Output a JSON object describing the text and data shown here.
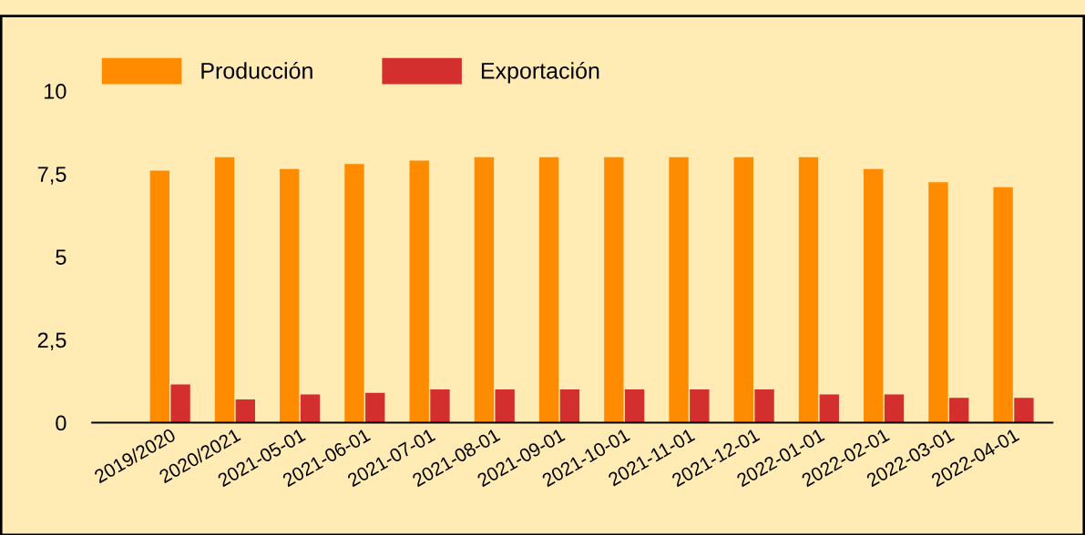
{
  "chart_data": {
    "type": "bar",
    "categories": [
      "2019/2020",
      "2020/2021",
      "2021-05-01",
      "2021-06-01",
      "2021-07-01",
      "2021-08-01",
      "2021-09-01",
      "2021-10-01",
      "2021-11-01",
      "2021-12-01",
      "2022-01-01",
      "2022-02-01",
      "2022-03-01",
      "2022-04-01"
    ],
    "series": [
      {
        "name": "Producción",
        "color": "#ff8c00",
        "values": [
          7.6,
          8.0,
          7.65,
          7.8,
          7.9,
          8.0,
          8.0,
          8.0,
          8.0,
          8.0,
          8.0,
          7.65,
          7.25,
          7.1
        ]
      },
      {
        "name": "Exportación",
        "color": "#d32f2f",
        "values": [
          1.15,
          0.7,
          0.85,
          0.9,
          1.0,
          1.0,
          1.0,
          1.0,
          1.0,
          1.0,
          0.85,
          0.85,
          0.75,
          0.75
        ]
      }
    ],
    "ylim": [
      0,
      10
    ],
    "yticks": [
      0,
      {
        "value": 2.5,
        "label": "2,5"
      },
      5,
      {
        "value": 7.5,
        "label": "7,5"
      },
      10
    ],
    "grid": false,
    "legend": "top left"
  }
}
